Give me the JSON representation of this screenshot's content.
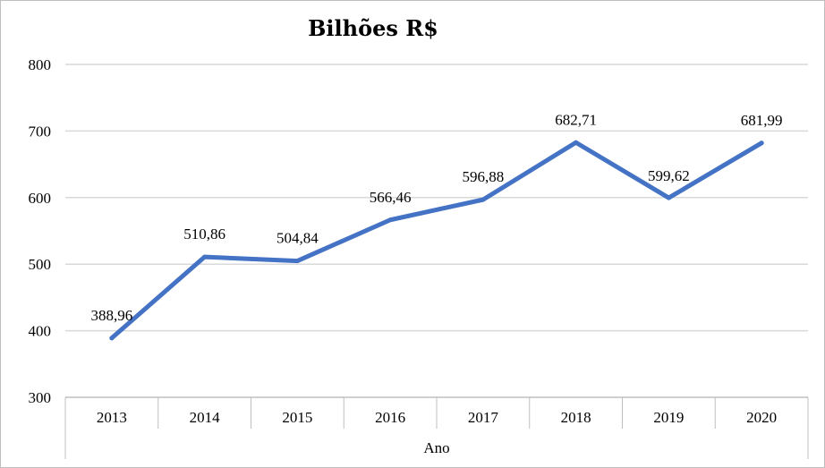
{
  "chart_data": {
    "type": "line",
    "title": "Bilhões R$",
    "xlabel": "Ano",
    "ylabel": "",
    "categories": [
      "2013",
      "2014",
      "2015",
      "2016",
      "2017",
      "2018",
      "2019",
      "2020"
    ],
    "series": [
      {
        "values": [
          388.96,
          510.86,
          504.84,
          566.46,
          596.88,
          682.71,
          599.62,
          681.99
        ],
        "data_labels": [
          "388,96",
          "510,86",
          "504,84",
          "566,46",
          "596,88",
          "682,71",
          "599,62",
          "681,99"
        ]
      }
    ],
    "ylim": [
      300,
      800
    ],
    "yticks": [
      "300",
      "400",
      "500",
      "600",
      "700",
      "800"
    ],
    "grid": true,
    "legend": "none",
    "colors": {
      "line": "#4472C4",
      "grid": "#d9d9d9",
      "axis": "#bfbfbf"
    }
  }
}
